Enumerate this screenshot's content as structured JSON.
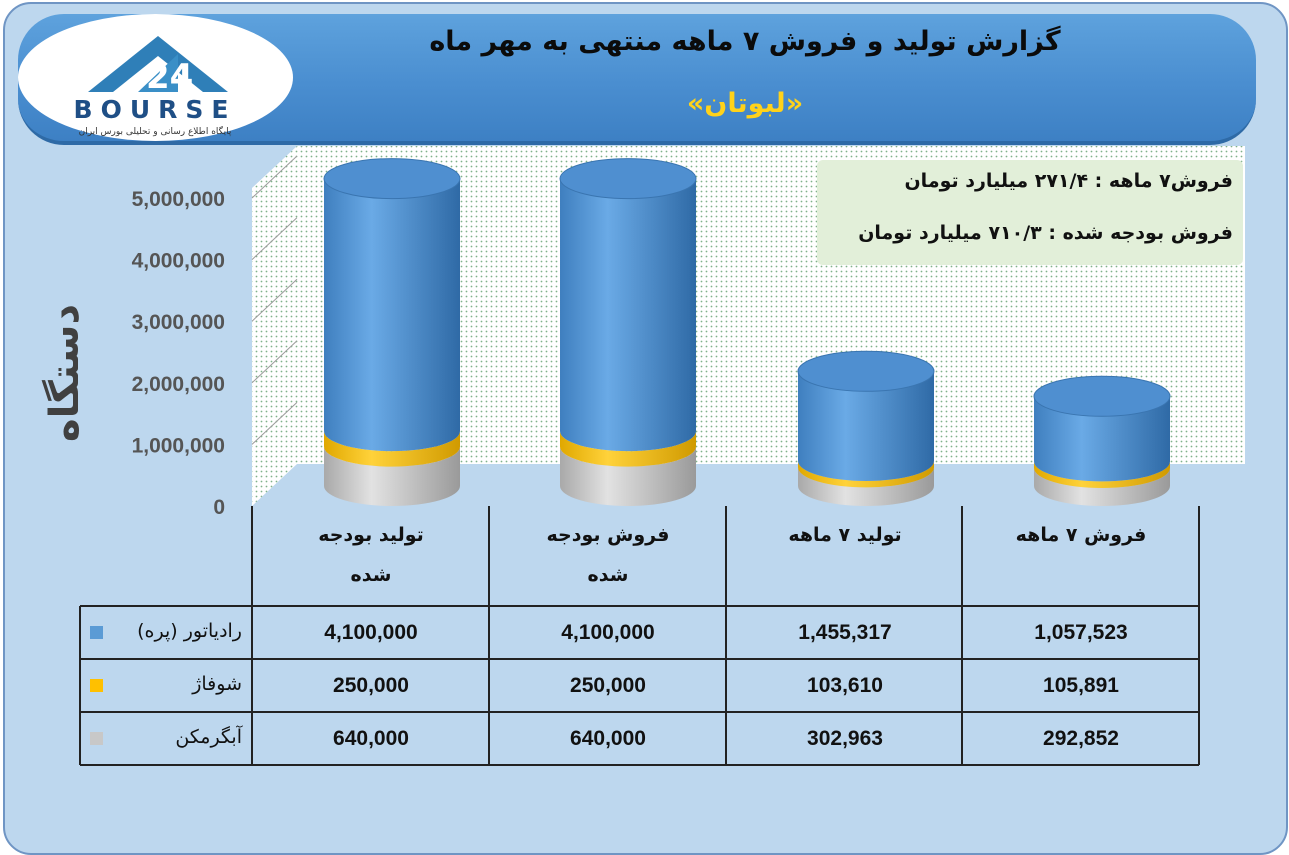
{
  "header": {
    "title": "گزارش تولید و فروش ۷ ماهه منتهی به مهر ماه",
    "company": "«لبوتان»",
    "logo_text": "BOURSE",
    "logo_number": "24",
    "logo_tagline": "پایگاه اطلاع رسانی و تحلیلی بورس ایران"
  },
  "note": {
    "line1": "فروش۷ ماهه : ۲۷۱/۴ میلیارد تومان",
    "line2": "فروش بودجه شده : ۷۱۰/۳ میلیارد تومان"
  },
  "chart_data": {
    "type": "bar",
    "stacked": true,
    "style": "3d-cylinder",
    "ylabel": "دستگاه",
    "ylim": [
      0,
      5000000
    ],
    "yticks": [
      "0",
      "1,000,000",
      "2,000,000",
      "3,000,000",
      "4,000,000",
      "5,000,000"
    ],
    "categories": [
      [
        "تولید بودجه",
        "شده"
      ],
      [
        "فروش بودجه",
        "شده"
      ],
      [
        "تولید ۷ ماهه"
      ],
      [
        "فروش ۷ ماهه"
      ]
    ],
    "series": [
      {
        "name": "آبگرمکن",
        "color": "#c8c8c8",
        "values": [
          640000,
          640000,
          302963,
          292852
        ],
        "labels": [
          "640,000",
          "640,000",
          "302,963",
          "292,852"
        ]
      },
      {
        "name": "شوفاژ",
        "color": "#ffc000",
        "values": [
          250000,
          250000,
          103610,
          105891
        ],
        "labels": [
          "250,000",
          "250,000",
          "103,610",
          "105,891"
        ]
      },
      {
        "name": "رادیاتور (پره)",
        "color": "#5b9bd5",
        "values": [
          4100000,
          4100000,
          1455317,
          1057523
        ],
        "labels": [
          "4,100,000",
          "4,100,000",
          "1,455,317",
          "1,057,523"
        ]
      }
    ],
    "table_row_order": [
      2,
      1,
      0
    ],
    "grid": false
  }
}
